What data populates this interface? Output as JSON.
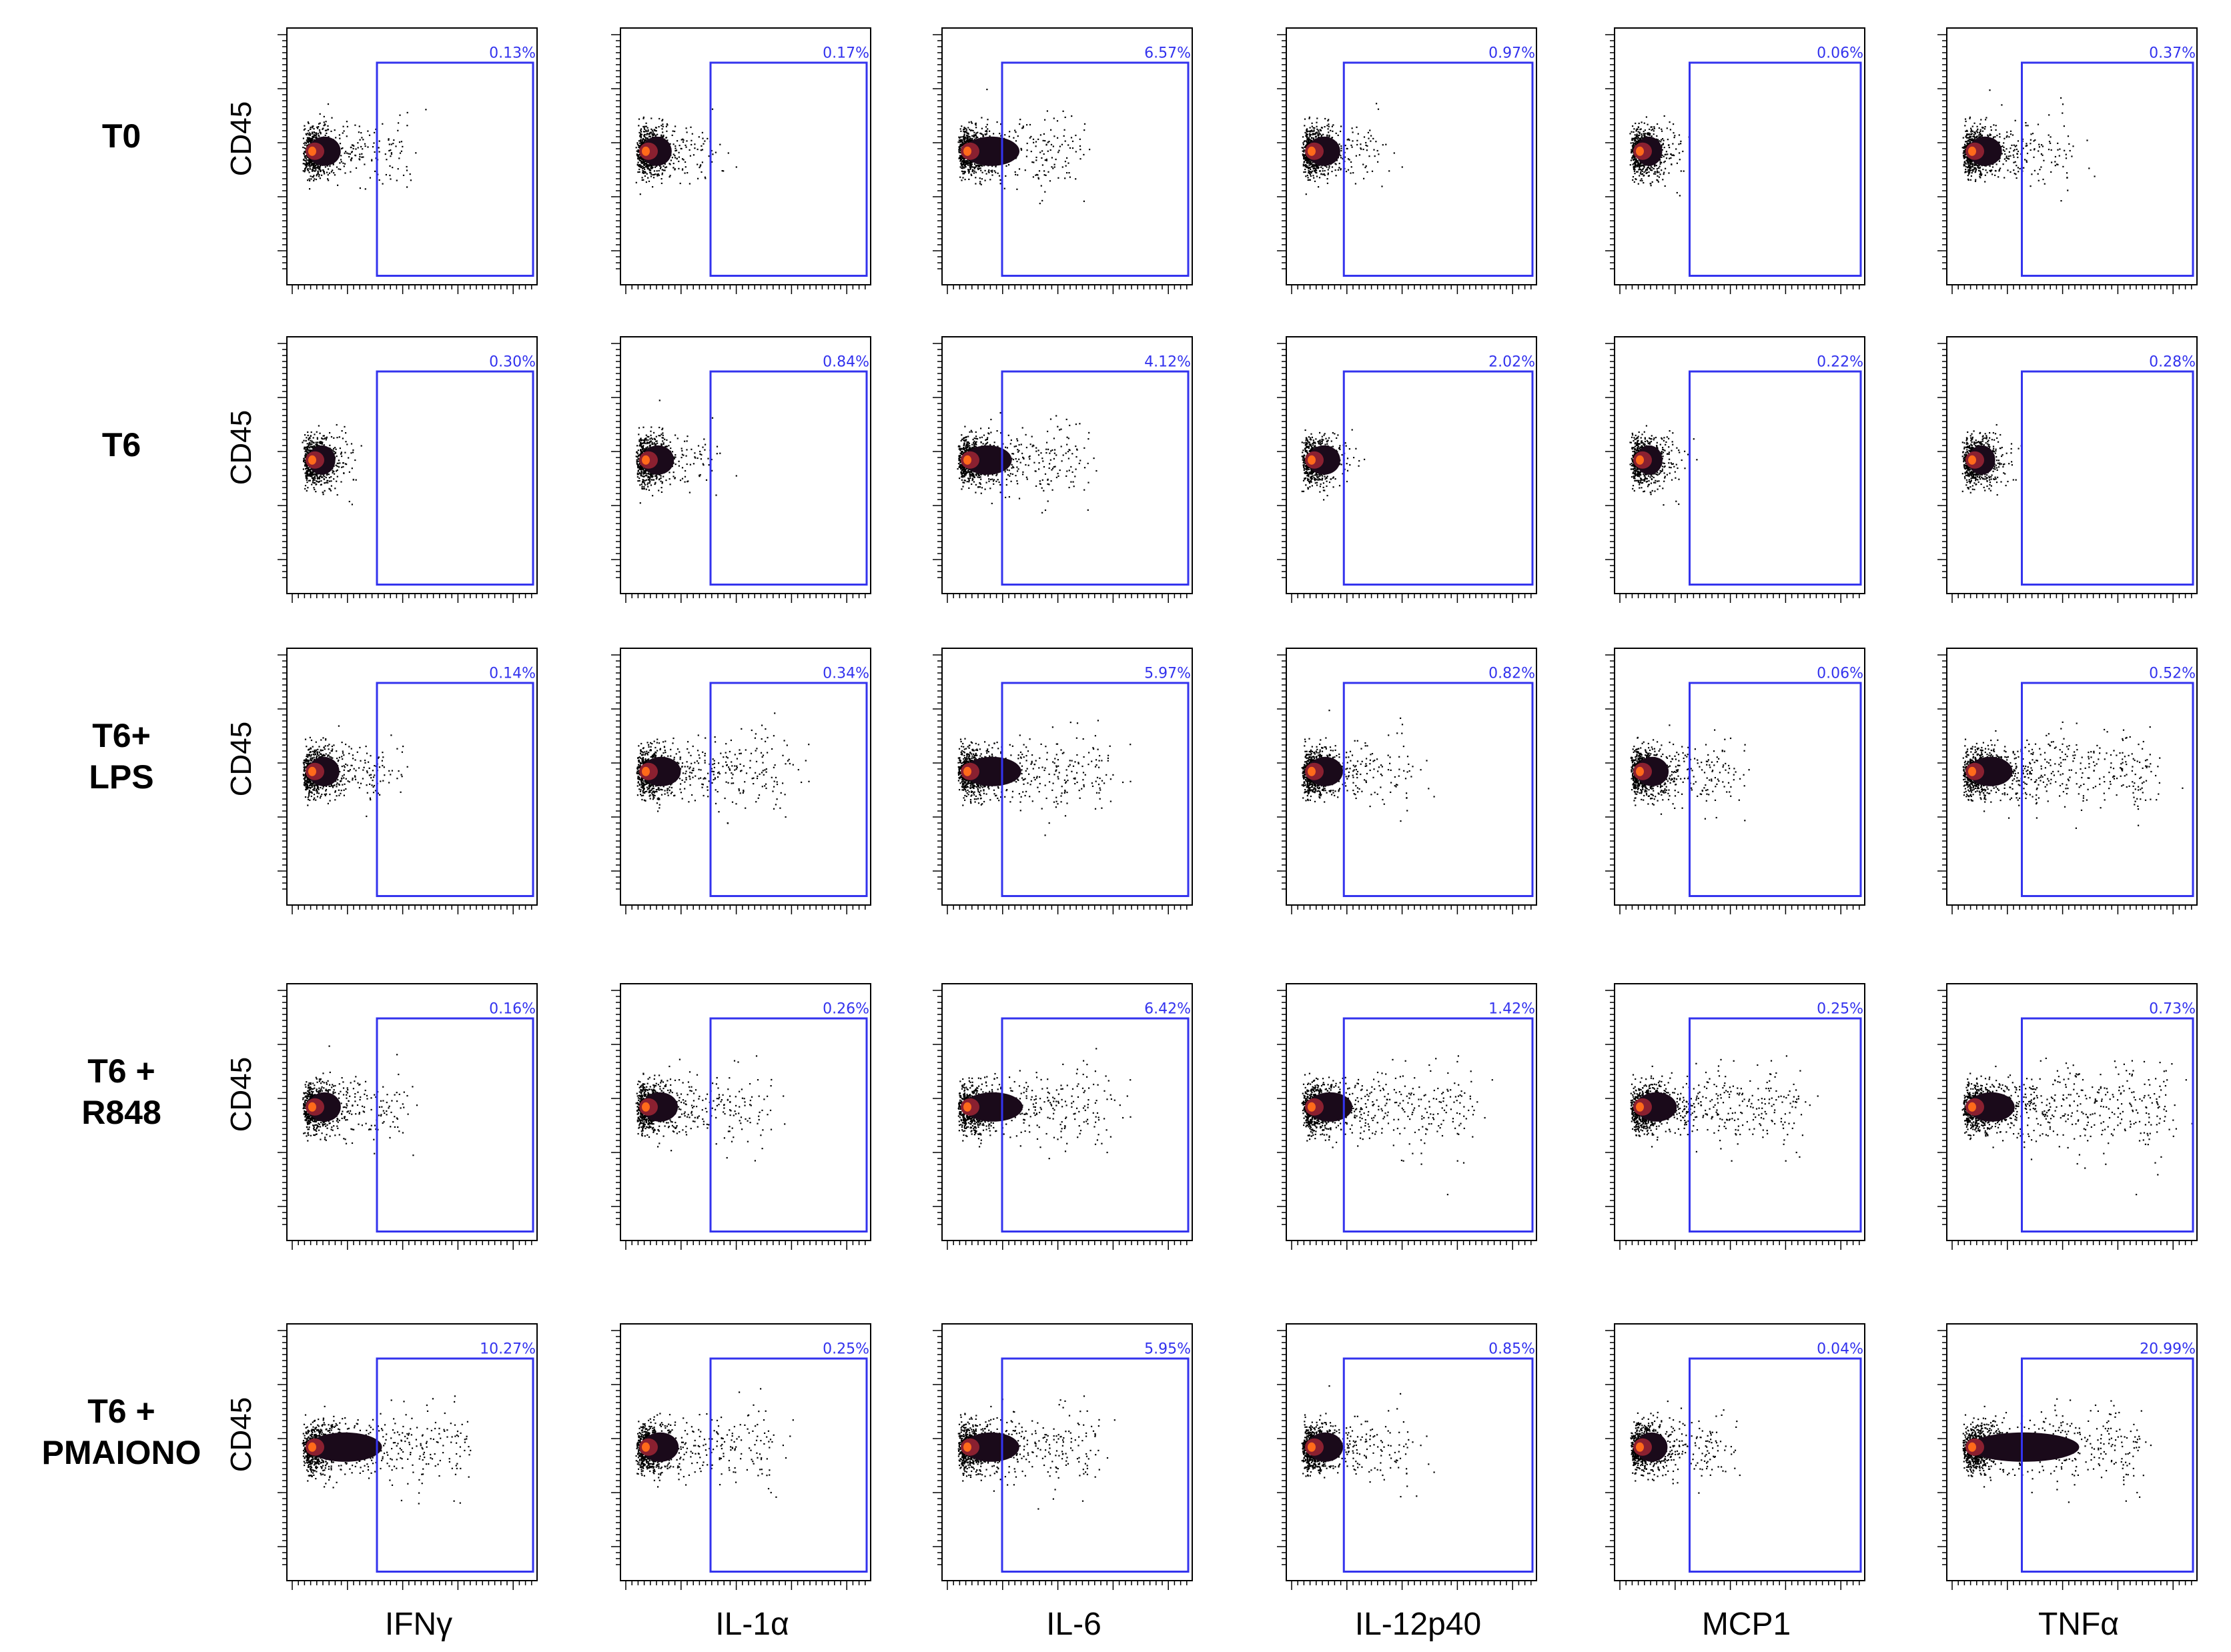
{
  "chart_data": {
    "type": "scatter",
    "description_rows": [
      "T0",
      "T6",
      "T6+ LPS",
      "T6 + R848",
      "T6 + PMAIONO"
    ],
    "row_labels": [
      [
        "T0"
      ],
      [
        "T6"
      ],
      [
        "T6+",
        "LPS"
      ],
      [
        "T6 +",
        "R848"
      ],
      [
        "T6 +",
        "PMAIONO"
      ]
    ],
    "column_labels": [
      "IFNγ",
      "IL-1α",
      "IL-6",
      "IL-12p40",
      "MCP1",
      "TNFα"
    ],
    "ylabel": "CD45",
    "gate_color": "#3333ee",
    "gate_percentages": [
      [
        "0.13%",
        "0.17%",
        "6.57%",
        "0.97%",
        "0.06%",
        "0.37%"
      ],
      [
        "0.30%",
        "0.84%",
        "4.12%",
        "2.02%",
        "0.22%",
        "0.28%"
      ],
      [
        "0.14%",
        "0.34%",
        "5.97%",
        "0.82%",
        "0.06%",
        "0.52%"
      ],
      [
        "0.16%",
        "0.26%",
        "6.42%",
        "1.42%",
        "0.25%",
        "0.73%"
      ],
      [
        "10.27%",
        "0.25%",
        "5.95%",
        "0.85%",
        "0.04%",
        "20.99%"
      ]
    ],
    "gate_values": [
      [
        0.13,
        0.17,
        6.57,
        0.97,
        0.06,
        0.37
      ],
      [
        0.3,
        0.84,
        4.12,
        2.02,
        0.22,
        0.28
      ],
      [
        0.14,
        0.34,
        5.97,
        0.82,
        0.06,
        0.52
      ],
      [
        0.16,
        0.26,
        6.42,
        1.42,
        0.25,
        0.73
      ],
      [
        10.27,
        0.25,
        5.95,
        0.85,
        0.04,
        20.99
      ]
    ],
    "population_spread": [
      [
        0.4,
        0.3,
        0.48,
        0.3,
        0.18,
        0.42
      ],
      [
        0.18,
        0.3,
        0.5,
        0.17,
        0.17,
        0.18
      ],
      [
        0.35,
        0.62,
        0.62,
        0.42,
        0.42,
        0.8
      ],
      [
        0.4,
        0.52,
        0.62,
        0.7,
        0.7,
        0.85
      ],
      [
        0.68,
        0.55,
        0.55,
        0.42,
        0.38,
        0.74
      ]
    ]
  }
}
